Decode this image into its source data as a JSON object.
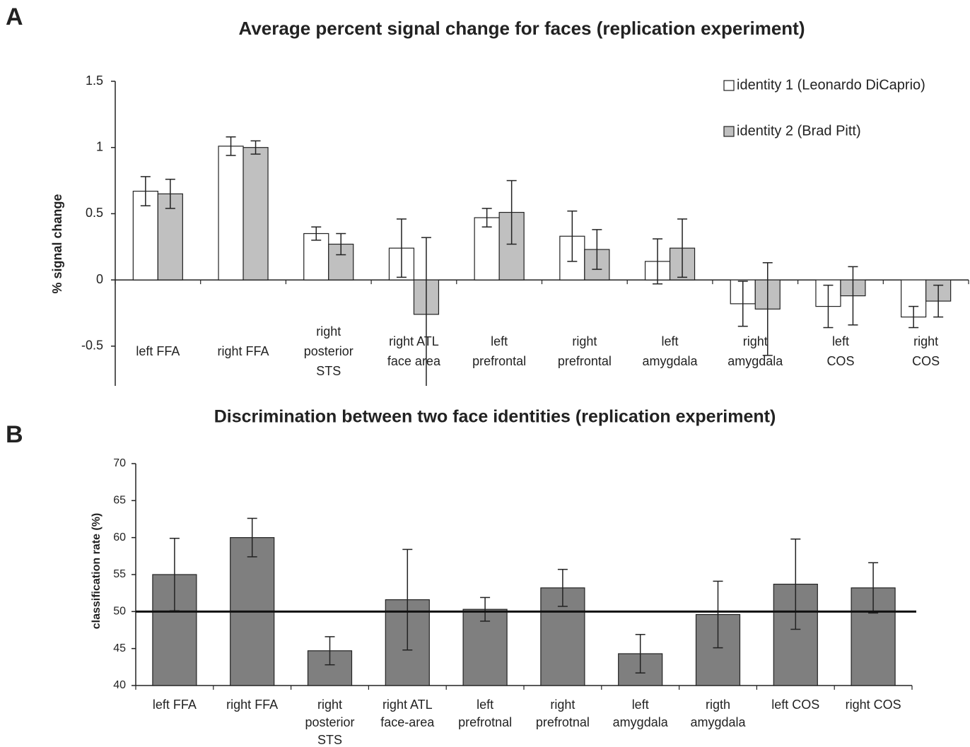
{
  "chart_data": [
    {
      "type": "bar",
      "panel_label": "A",
      "title": "Average percent signal change for faces (replication experiment)",
      "y_label": "% signal change",
      "categories": [
        "left FFA",
        "right FFA",
        "right\nposterior\nSTS",
        "right ATL\nface area",
        "left\nprefrontal",
        "right\nprefrontal",
        "left\namygdala",
        "right\namygdala",
        "left\nCOS",
        "right\nCOS"
      ],
      "series": [
        {
          "name": "identity 1 (Leonardo DiCaprio)",
          "color": "#ffffff",
          "values": [
            0.67,
            1.01,
            0.35,
            0.24,
            0.47,
            0.33,
            0.14,
            -0.18,
            -0.2,
            -0.28
          ],
          "errors": [
            0.11,
            0.07,
            0.05,
            0.22,
            0.07,
            0.19,
            0.17,
            0.17,
            0.16,
            0.08
          ]
        },
        {
          "name": "identity 2 (Brad Pitt)",
          "color": "#c0c0c0",
          "values": [
            0.65,
            1.0,
            0.27,
            -0.26,
            0.51,
            0.23,
            0.24,
            -0.22,
            -0.12,
            -0.16
          ],
          "errors": [
            0.11,
            0.05,
            0.08,
            0.58,
            0.24,
            0.15,
            0.22,
            0.35,
            0.22,
            0.12
          ]
        }
      ],
      "ylim": [
        -0.8,
        1.5
      ],
      "yticks": [
        -0.5,
        0,
        0.5,
        1,
        1.5
      ],
      "legend": "upper right"
    },
    {
      "type": "bar",
      "panel_label": "B",
      "title": "Discrimination between two face identities (replication experiment)",
      "y_label": "classification rate (%)",
      "categories": [
        "left FFA",
        "right FFA",
        "right\nposterior\nSTS",
        "right ATL\nface-area",
        "left\nprefrotnal",
        "right\nprefrotnal",
        "left\namygdala",
        "rigth\namygdala",
        "left COS",
        "right COS"
      ],
      "series": [
        {
          "color": "#7f7f7f",
          "values": [
            55,
            60,
            44.7,
            51.6,
            50.3,
            53.2,
            44.3,
            49.6,
            53.7,
            53.2
          ],
          "errors": [
            4.9,
            2.6,
            1.9,
            6.8,
            1.6,
            2.5,
            2.6,
            4.5,
            6.1,
            3.4
          ]
        }
      ],
      "ylim": [
        40,
        70
      ],
      "yticks": [
        40,
        45,
        50,
        55,
        60,
        65,
        70
      ],
      "hline": 50
    }
  ]
}
